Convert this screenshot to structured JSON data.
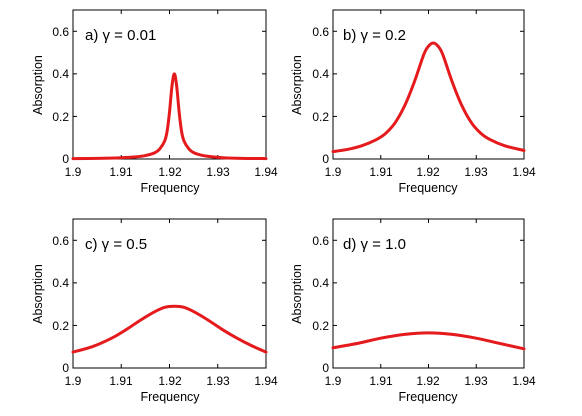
{
  "chart_data": [
    {
      "type": "line",
      "title": "a) γ = 0.01",
      "xlabel": "Frequency",
      "ylabel": "Absorption",
      "xlim": [
        1.9,
        1.94
      ],
      "ylim": [
        0,
        0.7
      ],
      "xticks": [
        "1.9",
        "1.91",
        "1.92",
        "1.93",
        "1.94"
      ],
      "yticks": [
        "0",
        "0.2",
        "0.4",
        "0.6"
      ],
      "grid": false,
      "color": "#e41a1c",
      "series": [
        {
          "x": [
            1.9,
            1.905,
            1.91,
            1.913,
            1.915,
            1.917,
            1.918,
            1.919,
            1.9195,
            1.92,
            1.9205,
            1.921,
            1.9215,
            1.922,
            1.9225,
            1.923,
            1.924,
            1.925,
            1.927,
            1.929,
            1.931,
            1.935,
            1.94
          ],
          "y": [
            0.002,
            0.003,
            0.006,
            0.01,
            0.016,
            0.03,
            0.048,
            0.085,
            0.13,
            0.22,
            0.34,
            0.4,
            0.34,
            0.22,
            0.13,
            0.085,
            0.048,
            0.03,
            0.016,
            0.01,
            0.006,
            0.003,
            0.002
          ]
        }
      ]
    },
    {
      "type": "line",
      "title": "b) γ = 0.2",
      "xlabel": "Frequency",
      "ylabel": "Absorption",
      "xlim": [
        1.9,
        1.94
      ],
      "ylim": [
        0,
        0.7
      ],
      "xticks": [
        "1.9",
        "1.91",
        "1.92",
        "1.93",
        "1.94"
      ],
      "yticks": [
        "0",
        "0.2",
        "0.4",
        "0.6"
      ],
      "grid": false,
      "color": "#e41a1c",
      "series": [
        {
          "x": [
            1.9,
            1.903,
            1.906,
            1.909,
            1.911,
            1.913,
            1.915,
            1.917,
            1.919,
            1.92,
            1.921,
            1.922,
            1.923,
            1.925,
            1.927,
            1.929,
            1.931,
            1.933,
            1.936,
            1.94
          ],
          "y": [
            0.035,
            0.045,
            0.062,
            0.09,
            0.12,
            0.17,
            0.25,
            0.36,
            0.49,
            0.53,
            0.545,
            0.53,
            0.49,
            0.36,
            0.25,
            0.17,
            0.12,
            0.09,
            0.062,
            0.04
          ]
        }
      ]
    },
    {
      "type": "line",
      "title": "c) γ = 0.5",
      "xlabel": "Frequency",
      "ylabel": "Absorption",
      "xlim": [
        1.9,
        1.94
      ],
      "ylim": [
        0,
        0.7
      ],
      "xticks": [
        "1.9",
        "1.91",
        "1.92",
        "1.93",
        "1.94"
      ],
      "yticks": [
        "0",
        "0.2",
        "0.4",
        "0.6"
      ],
      "grid": false,
      "color": "#e41a1c",
      "series": [
        {
          "x": [
            1.9,
            1.904,
            1.908,
            1.911,
            1.914,
            1.917,
            1.919,
            1.921,
            1.923,
            1.925,
            1.928,
            1.931,
            1.934,
            1.937,
            1.94
          ],
          "y": [
            0.075,
            0.1,
            0.14,
            0.18,
            0.225,
            0.265,
            0.285,
            0.29,
            0.285,
            0.265,
            0.225,
            0.18,
            0.14,
            0.105,
            0.075
          ]
        }
      ]
    },
    {
      "type": "line",
      "title": "d) γ = 1.0",
      "xlabel": "Frequency",
      "ylabel": "Absorption",
      "xlim": [
        1.9,
        1.94
      ],
      "ylim": [
        0,
        0.7
      ],
      "xticks": [
        "1.9",
        "1.91",
        "1.92",
        "1.93",
        "1.94"
      ],
      "yticks": [
        "0",
        "0.2",
        "0.4",
        "0.6"
      ],
      "grid": false,
      "color": "#e41a1c",
      "series": [
        {
          "x": [
            1.9,
            1.905,
            1.91,
            1.915,
            1.92,
            1.925,
            1.93,
            1.935,
            1.94
          ],
          "y": [
            0.095,
            0.115,
            0.14,
            0.158,
            0.165,
            0.158,
            0.14,
            0.115,
            0.09
          ]
        }
      ]
    }
  ]
}
